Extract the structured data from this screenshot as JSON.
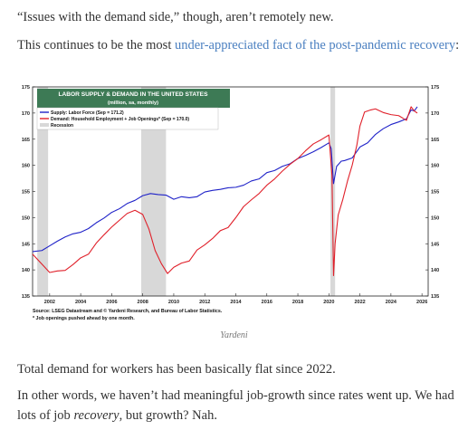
{
  "article": {
    "p1": "“Issues with the demand side,” though, aren’t remotely new.",
    "p2_prefix": "This continues to be the most ",
    "p2_link": "under-appreciated fact of the post-pandemic recovery",
    "p2_suffix": ":",
    "caption": "Yardeni",
    "p3": "Total demand for workers has been basically flat since 2022.",
    "p4_line1": "In other words, we haven’t had meaningful job-growth since rates went up. We had",
    "p4_line2_prefix": "lots of job ",
    "p4_line2_em": "recovery",
    "p4_line2_suffix": ", but growth? Nah."
  },
  "colors": {
    "link": "#4a7fc0",
    "supply": "#1f22c8",
    "demand": "#e0202a",
    "title_bg": "#3d7a55",
    "recession": "#d8d8d8"
  },
  "chart_data": {
    "type": "line",
    "title": "LABOR SUPPLY & DEMAND IN THE UNITED STATES",
    "subtitle": "(million, sa, monthly)",
    "legend": [
      "Supply: Labor Force (Sep = 171.2)",
      "Demand: Household Employment + Job Openings* (Sep = 170.0)",
      "Recession"
    ],
    "legend_placement": "top-left",
    "ylim": [
      135,
      175
    ],
    "yticks": [
      "135",
      "140",
      "145",
      "150",
      "155",
      "160",
      "165",
      "170",
      "175"
    ],
    "xlim": [
      2000.9,
      2026.4
    ],
    "xticks": [
      "2002",
      "2004",
      "2006",
      "2008",
      "2010",
      "2012",
      "2014",
      "2016",
      "2018",
      "2020",
      "2022",
      "2024",
      "2026"
    ],
    "recessions": [
      [
        2001.2,
        2001.9
      ],
      [
        2007.9,
        2009.5
      ],
      [
        2020.1,
        2020.4
      ]
    ],
    "series": [
      {
        "name": "Supply: Labor Force (Sep = 171.2)",
        "x": [
          2000.9,
          2001.5,
          2002.0,
          2002.5,
          2003.0,
          2003.5,
          2004.0,
          2004.5,
          2005.0,
          2005.5,
          2006.0,
          2006.5,
          2007.0,
          2007.5,
          2008.0,
          2008.5,
          2009.0,
          2009.5,
          2010.0,
          2010.5,
          2011.0,
          2011.5,
          2012.0,
          2012.5,
          2013.0,
          2013.5,
          2014.0,
          2014.5,
          2015.0,
          2015.5,
          2016.0,
          2016.5,
          2017.0,
          2017.5,
          2018.0,
          2018.5,
          2019.0,
          2019.5,
          2020.0,
          2020.15,
          2020.3,
          2020.5,
          2020.8,
          2021.0,
          2021.5,
          2022.0,
          2022.5,
          2023.0,
          2023.5,
          2024.0,
          2024.5,
          2025.0,
          2025.3,
          2025.5,
          2025.7
        ],
        "y": [
          143.5,
          143.7,
          144.6,
          145.5,
          146.3,
          146.9,
          147.2,
          147.9,
          149.0,
          149.9,
          151.0,
          151.7,
          152.7,
          153.3,
          154.2,
          154.6,
          154.4,
          154.3,
          153.5,
          154.0,
          153.8,
          154.0,
          154.9,
          155.2,
          155.4,
          155.7,
          155.8,
          156.2,
          157.0,
          157.4,
          158.6,
          159.0,
          159.8,
          160.3,
          161.3,
          161.9,
          162.6,
          163.4,
          164.3,
          163.2,
          156.5,
          159.8,
          160.8,
          160.9,
          161.4,
          163.5,
          164.3,
          165.9,
          167.0,
          167.8,
          168.3,
          168.9,
          170.6,
          170.4,
          171.2
        ]
      },
      {
        "name": "Demand: Household Employment + Job Openings* (Sep = 170.0)",
        "x": [
          2000.9,
          2001.5,
          2002.0,
          2002.5,
          2003.0,
          2003.5,
          2004.0,
          2004.5,
          2005.0,
          2005.5,
          2006.0,
          2006.5,
          2007.0,
          2007.5,
          2008.0,
          2008.4,
          2008.8,
          2009.2,
          2009.6,
          2010.0,
          2010.5,
          2011.0,
          2011.5,
          2012.0,
          2012.5,
          2013.0,
          2013.5,
          2014.0,
          2014.5,
          2015.0,
          2015.5,
          2016.0,
          2016.5,
          2017.0,
          2017.5,
          2018.0,
          2018.5,
          2019.0,
          2019.5,
          2020.0,
          2020.2,
          2020.3,
          2020.4,
          2020.6,
          2020.9,
          2021.2,
          2021.5,
          2021.8,
          2022.0,
          2022.3,
          2022.7,
          2023.0,
          2023.5,
          2024.0,
          2024.5,
          2025.0,
          2025.3,
          2025.5,
          2025.7
        ],
        "y": [
          143.0,
          141.1,
          139.5,
          139.8,
          139.9,
          141.0,
          142.3,
          143.0,
          145.1,
          146.7,
          148.2,
          149.5,
          150.8,
          151.4,
          150.6,
          147.8,
          143.7,
          141.2,
          139.3,
          140.5,
          141.3,
          141.7,
          143.8,
          144.8,
          146.0,
          147.5,
          148.1,
          150.0,
          152.1,
          153.4,
          154.6,
          156.2,
          157.4,
          158.9,
          160.2,
          161.3,
          162.8,
          164.1,
          164.9,
          165.8,
          158.0,
          138.9,
          145.0,
          150.5,
          153.5,
          157.0,
          160.0,
          163.8,
          167.5,
          170.2,
          170.6,
          170.8,
          170.1,
          169.7,
          169.5,
          168.6,
          171.2,
          170.4,
          170.0
        ]
      }
    ],
    "source": "Source: LSEG Datastream and © Yardeni Research, and Bureau of Labor Statistics.",
    "note": "* Job openings pushed ahead by one month."
  }
}
